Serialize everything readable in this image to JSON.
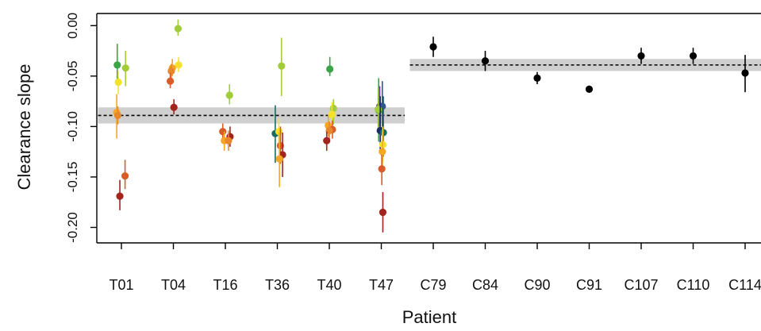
{
  "chart_data": {
    "type": "scatter",
    "xlabel": "Patient",
    "ylabel": "Clearance slope",
    "categories": [
      "T01",
      "T04",
      "T16",
      "T36",
      "T40",
      "T47",
      "C79",
      "C84",
      "C90",
      "C91",
      "C107",
      "C110",
      "C114"
    ],
    "ylim": [
      -0.22,
      0.02
    ],
    "yticks": [
      0.0,
      -0.05,
      -0.1,
      -0.15,
      -0.2
    ],
    "ytick_labels": [
      "0.00",
      "-0.05",
      "-0.10",
      "-0.15",
      "-0.20"
    ],
    "grid": false,
    "group_means": [
      {
        "group": "T",
        "from": "T01",
        "to": "T47",
        "mean": -0.089,
        "lower": -0.097,
        "upper": -0.081
      },
      {
        "group": "C",
        "from": "C79",
        "to": "C114",
        "mean": -0.039,
        "lower": -0.045,
        "upper": -0.033
      }
    ],
    "points": [
      {
        "category": "T01",
        "offset": -0.08,
        "y": -0.039,
        "lo": -0.058,
        "hi": -0.018,
        "color": "#3aa447"
      },
      {
        "category": "T01",
        "offset": 0.08,
        "y": -0.042,
        "lo": -0.06,
        "hi": -0.025,
        "color": "#a3cc3a"
      },
      {
        "category": "T01",
        "offset": -0.06,
        "y": -0.056,
        "lo": -0.068,
        "hi": -0.045,
        "color": "#f4e22a"
      },
      {
        "category": "T01",
        "offset": -0.09,
        "y": -0.086,
        "lo": -0.112,
        "hi": -0.068,
        "color": "#f5a623"
      },
      {
        "category": "T01",
        "offset": -0.07,
        "y": -0.089,
        "lo": -0.098,
        "hi": -0.08,
        "color": "#e8862a"
      },
      {
        "category": "T01",
        "offset": 0.07,
        "y": -0.149,
        "lo": -0.162,
        "hi": -0.133,
        "color": "#d95b27"
      },
      {
        "category": "T01",
        "offset": -0.03,
        "y": -0.169,
        "lo": -0.183,
        "hi": -0.153,
        "color": "#a3241d"
      },
      {
        "category": "T04",
        "offset": 0.09,
        "y": -0.003,
        "lo": -0.01,
        "hi": 0.006,
        "color": "#a3cc3a"
      },
      {
        "category": "T04",
        "offset": 0.1,
        "y": -0.039,
        "lo": -0.046,
        "hi": -0.031,
        "color": "#f4e22a"
      },
      {
        "category": "T04",
        "offset": -0.02,
        "y": -0.042,
        "lo": -0.05,
        "hi": -0.033,
        "color": "#f5a623"
      },
      {
        "category": "T04",
        "offset": -0.04,
        "y": -0.045,
        "lo": -0.054,
        "hi": -0.038,
        "color": "#e8862a"
      },
      {
        "category": "T04",
        "offset": -0.06,
        "y": -0.055,
        "lo": -0.062,
        "hi": -0.047,
        "color": "#d95b27"
      },
      {
        "category": "T04",
        "offset": 0.01,
        "y": -0.081,
        "lo": -0.088,
        "hi": -0.073,
        "color": "#a3241d"
      },
      {
        "category": "T16",
        "offset": 0.08,
        "y": -0.069,
        "lo": -0.078,
        "hi": -0.058,
        "color": "#a3cc3a"
      },
      {
        "category": "T16",
        "offset": -0.05,
        "y": -0.105,
        "lo": -0.115,
        "hi": -0.097,
        "color": "#d95b27"
      },
      {
        "category": "T16",
        "offset": 0.09,
        "y": -0.11,
        "lo": -0.12,
        "hi": -0.1,
        "color": "#a3241d"
      },
      {
        "category": "T16",
        "offset": -0.02,
        "y": -0.114,
        "lo": -0.124,
        "hi": -0.105,
        "color": "#f5a623"
      },
      {
        "category": "T16",
        "offset": 0.06,
        "y": -0.114,
        "lo": -0.124,
        "hi": -0.104,
        "color": "#e8862a"
      },
      {
        "category": "T36",
        "offset": 0.08,
        "y": -0.04,
        "lo": -0.07,
        "hi": -0.012,
        "color": "#a3cc3a"
      },
      {
        "category": "T36",
        "offset": -0.04,
        "y": -0.107,
        "lo": -0.136,
        "hi": -0.079,
        "color": "#1d6b5f"
      },
      {
        "category": "T36",
        "offset": 0.03,
        "y": -0.105,
        "lo": -0.118,
        "hi": -0.092,
        "color": "#f4e22a"
      },
      {
        "category": "T36",
        "offset": 0.06,
        "y": -0.119,
        "lo": -0.137,
        "hi": -0.1,
        "color": "#d95b27"
      },
      {
        "category": "T36",
        "offset": 0.1,
        "y": -0.128,
        "lo": -0.15,
        "hi": -0.106,
        "color": "#a3241d"
      },
      {
        "category": "T36",
        "offset": 0.04,
        "y": -0.132,
        "lo": -0.16,
        "hi": -0.105,
        "color": "#f5a623"
      },
      {
        "category": "T40",
        "offset": 0.01,
        "y": -0.043,
        "lo": -0.05,
        "hi": -0.031,
        "color": "#3aa447"
      },
      {
        "category": "T40",
        "offset": 0.08,
        "y": -0.082,
        "lo": -0.098,
        "hi": -0.073,
        "color": "#a3cc3a"
      },
      {
        "category": "T40",
        "offset": 0.05,
        "y": -0.088,
        "lo": -0.1,
        "hi": -0.076,
        "color": "#f4e22a"
      },
      {
        "category": "T40",
        "offset": -0.02,
        "y": -0.099,
        "lo": -0.11,
        "hi": -0.088,
        "color": "#f5a623"
      },
      {
        "category": "T40",
        "offset": 0.06,
        "y": -0.103,
        "lo": -0.112,
        "hi": -0.094,
        "color": "#d95b27"
      },
      {
        "category": "T40",
        "offset": 0.0,
        "y": -0.104,
        "lo": -0.115,
        "hi": -0.095,
        "color": "#e8862a"
      },
      {
        "category": "T40",
        "offset": -0.05,
        "y": -0.114,
        "lo": -0.124,
        "hi": -0.105,
        "color": "#a3241d"
      },
      {
        "category": "T47",
        "offset": -0.05,
        "y": -0.084,
        "lo": -0.115,
        "hi": -0.052,
        "color": "#3aa447"
      },
      {
        "category": "T47",
        "offset": -0.03,
        "y": -0.08,
        "lo": -0.1,
        "hi": -0.06,
        "color": "#6a3d9a"
      },
      {
        "category": "T47",
        "offset": 0.02,
        "y": -0.08,
        "lo": -0.11,
        "hi": -0.055,
        "color": "#3b4fa0"
      },
      {
        "category": "T47",
        "offset": -0.06,
        "y": -0.083,
        "lo": -0.105,
        "hi": -0.062,
        "color": "#a3cc3a"
      },
      {
        "category": "T47",
        "offset": -0.02,
        "y": -0.104,
        "lo": -0.125,
        "hi": -0.07,
        "color": "#1c2a6e"
      },
      {
        "category": "T47",
        "offset": 0.04,
        "y": -0.106,
        "lo": -0.13,
        "hi": -0.07,
        "color": "#1d6b5f"
      },
      {
        "category": "T47",
        "offset": 0.03,
        "y": -0.118,
        "lo": -0.135,
        "hi": -0.1,
        "color": "#f4e22a"
      },
      {
        "category": "T47",
        "offset": 0.02,
        "y": -0.125,
        "lo": -0.145,
        "hi": -0.105,
        "color": "#f5a623"
      },
      {
        "category": "T47",
        "offset": 0.01,
        "y": -0.142,
        "lo": -0.158,
        "hi": -0.128,
        "color": "#d95b27"
      },
      {
        "category": "T47",
        "offset": 0.03,
        "y": -0.185,
        "lo": -0.205,
        "hi": -0.165,
        "color": "#a3241d"
      },
      {
        "category": "C79",
        "offset": 0.0,
        "y": -0.021,
        "lo": -0.031,
        "hi": -0.011,
        "color": "#000000"
      },
      {
        "category": "C84",
        "offset": 0.0,
        "y": -0.035,
        "lo": -0.045,
        "hi": -0.025,
        "color": "#000000"
      },
      {
        "category": "C90",
        "offset": 0.0,
        "y": -0.052,
        "lo": -0.058,
        "hi": -0.046,
        "color": "#000000"
      },
      {
        "category": "C91",
        "offset": 0.0,
        "y": -0.063,
        "lo": -0.063,
        "hi": -0.063,
        "color": "#000000"
      },
      {
        "category": "C107",
        "offset": 0.0,
        "y": -0.03,
        "lo": -0.038,
        "hi": -0.022,
        "color": "#000000"
      },
      {
        "category": "C110",
        "offset": 0.0,
        "y": -0.03,
        "lo": -0.038,
        "hi": -0.022,
        "color": "#000000"
      },
      {
        "category": "C114",
        "offset": 0.0,
        "y": -0.047,
        "lo": -0.066,
        "hi": -0.029,
        "color": "#000000"
      }
    ]
  }
}
